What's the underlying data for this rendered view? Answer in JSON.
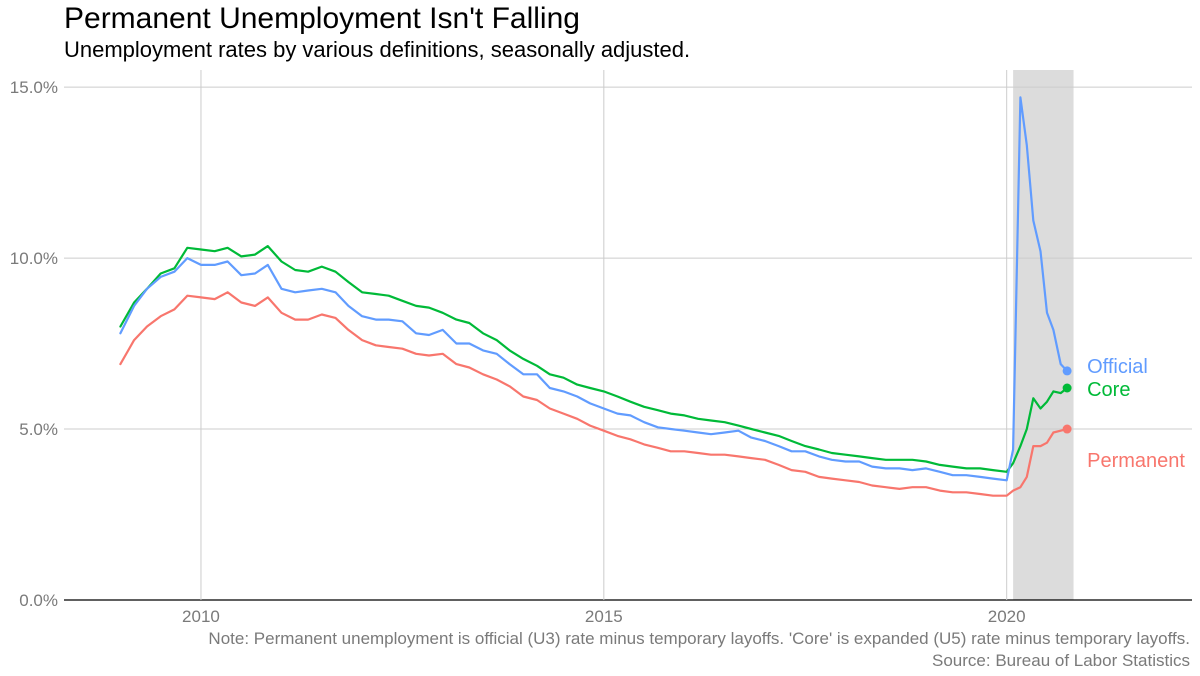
{
  "chart_data": {
    "type": "line",
    "title": "Permanent Unemployment Isn't Falling",
    "subtitle": "Unemployment rates by various definitions, seasonally adjusted.",
    "note": "Note: Permanent unemployment is official (U3) rate minus temporary layoffs. 'Core' is expanded (U5) rate minus temporary layoffs.",
    "source": "Source: Bureau of Labor Statistics",
    "x_label": "",
    "y_label": "",
    "xlim": [
      2008.3,
      2022.3
    ],
    "ylim": [
      0,
      15.5
    ],
    "x_ticks": [
      2010,
      2015,
      2020
    ],
    "x_tick_labels": [
      "2010",
      "2015",
      "2020"
    ],
    "y_ticks": [
      0,
      5,
      10,
      15
    ],
    "y_tick_labels": [
      "0.0%",
      "5.0%",
      "10.0%",
      "15.0%"
    ],
    "grid": true,
    "shaded_region": {
      "x_start": 2020.08,
      "x_end": 2020.83,
      "color": "#dcdcdc"
    },
    "series": [
      {
        "name": "Core",
        "color": "#00ba38",
        "end_label": "Core",
        "points": [
          [
            2009.0,
            8.0
          ],
          [
            2009.17,
            8.7
          ],
          [
            2009.33,
            9.1
          ],
          [
            2009.5,
            9.55
          ],
          [
            2009.67,
            9.7
          ],
          [
            2009.83,
            10.3
          ],
          [
            2010.0,
            10.25
          ],
          [
            2010.17,
            10.2
          ],
          [
            2010.33,
            10.3
          ],
          [
            2010.5,
            10.05
          ],
          [
            2010.67,
            10.1
          ],
          [
            2010.83,
            10.35
          ],
          [
            2011.0,
            9.9
          ],
          [
            2011.17,
            9.65
          ],
          [
            2011.33,
            9.6
          ],
          [
            2011.5,
            9.75
          ],
          [
            2011.67,
            9.6
          ],
          [
            2011.83,
            9.3
          ],
          [
            2012.0,
            9.0
          ],
          [
            2012.17,
            8.95
          ],
          [
            2012.33,
            8.9
          ],
          [
            2012.5,
            8.75
          ],
          [
            2012.67,
            8.6
          ],
          [
            2012.83,
            8.55
          ],
          [
            2013.0,
            8.4
          ],
          [
            2013.17,
            8.2
          ],
          [
            2013.33,
            8.1
          ],
          [
            2013.5,
            7.8
          ],
          [
            2013.67,
            7.6
          ],
          [
            2013.83,
            7.3
          ],
          [
            2014.0,
            7.05
          ],
          [
            2014.17,
            6.85
          ],
          [
            2014.33,
            6.6
          ],
          [
            2014.5,
            6.5
          ],
          [
            2014.67,
            6.3
          ],
          [
            2014.83,
            6.2
          ],
          [
            2015.0,
            6.1
          ],
          [
            2015.17,
            5.95
          ],
          [
            2015.33,
            5.8
          ],
          [
            2015.5,
            5.65
          ],
          [
            2015.67,
            5.55
          ],
          [
            2015.83,
            5.45
          ],
          [
            2016.0,
            5.4
          ],
          [
            2016.17,
            5.3
          ],
          [
            2016.33,
            5.25
          ],
          [
            2016.5,
            5.2
          ],
          [
            2016.67,
            5.1
          ],
          [
            2016.83,
            5.0
          ],
          [
            2017.0,
            4.9
          ],
          [
            2017.17,
            4.8
          ],
          [
            2017.33,
            4.65
          ],
          [
            2017.5,
            4.5
          ],
          [
            2017.67,
            4.4
          ],
          [
            2017.83,
            4.3
          ],
          [
            2018.0,
            4.25
          ],
          [
            2018.17,
            4.2
          ],
          [
            2018.33,
            4.15
          ],
          [
            2018.5,
            4.1
          ],
          [
            2018.67,
            4.1
          ],
          [
            2018.83,
            4.1
          ],
          [
            2019.0,
            4.05
          ],
          [
            2019.17,
            3.95
          ],
          [
            2019.33,
            3.9
          ],
          [
            2019.5,
            3.85
          ],
          [
            2019.67,
            3.85
          ],
          [
            2019.83,
            3.8
          ],
          [
            2020.0,
            3.75
          ],
          [
            2020.08,
            4.0
          ],
          [
            2020.17,
            4.5
          ],
          [
            2020.25,
            5.0
          ],
          [
            2020.33,
            5.9
          ],
          [
            2020.42,
            5.6
          ],
          [
            2020.5,
            5.8
          ],
          [
            2020.58,
            6.1
          ],
          [
            2020.67,
            6.05
          ],
          [
            2020.75,
            6.2
          ]
        ]
      },
      {
        "name": "Official",
        "color": "#619cff",
        "end_label": "Official",
        "points": [
          [
            2009.0,
            7.8
          ],
          [
            2009.17,
            8.6
          ],
          [
            2009.33,
            9.1
          ],
          [
            2009.5,
            9.45
          ],
          [
            2009.67,
            9.6
          ],
          [
            2009.83,
            10.0
          ],
          [
            2010.0,
            9.8
          ],
          [
            2010.17,
            9.8
          ],
          [
            2010.33,
            9.9
          ],
          [
            2010.5,
            9.5
          ],
          [
            2010.67,
            9.55
          ],
          [
            2010.83,
            9.8
          ],
          [
            2011.0,
            9.1
          ],
          [
            2011.17,
            9.0
          ],
          [
            2011.33,
            9.05
          ],
          [
            2011.5,
            9.1
          ],
          [
            2011.67,
            9.0
          ],
          [
            2011.83,
            8.6
          ],
          [
            2012.0,
            8.3
          ],
          [
            2012.17,
            8.2
          ],
          [
            2012.33,
            8.2
          ],
          [
            2012.5,
            8.15
          ],
          [
            2012.67,
            7.8
          ],
          [
            2012.83,
            7.75
          ],
          [
            2013.0,
            7.9
          ],
          [
            2013.17,
            7.5
          ],
          [
            2013.33,
            7.5
          ],
          [
            2013.5,
            7.3
          ],
          [
            2013.67,
            7.2
          ],
          [
            2013.83,
            6.9
          ],
          [
            2014.0,
            6.6
          ],
          [
            2014.17,
            6.6
          ],
          [
            2014.33,
            6.2
          ],
          [
            2014.5,
            6.1
          ],
          [
            2014.67,
            5.95
          ],
          [
            2014.83,
            5.75
          ],
          [
            2015.0,
            5.6
          ],
          [
            2015.17,
            5.45
          ],
          [
            2015.33,
            5.4
          ],
          [
            2015.5,
            5.2
          ],
          [
            2015.67,
            5.05
          ],
          [
            2015.83,
            5.0
          ],
          [
            2016.0,
            4.95
          ],
          [
            2016.17,
            4.9
          ],
          [
            2016.33,
            4.85
          ],
          [
            2016.5,
            4.9
          ],
          [
            2016.67,
            4.95
          ],
          [
            2016.83,
            4.75
          ],
          [
            2017.0,
            4.65
          ],
          [
            2017.17,
            4.5
          ],
          [
            2017.33,
            4.35
          ],
          [
            2017.5,
            4.35
          ],
          [
            2017.67,
            4.2
          ],
          [
            2017.83,
            4.1
          ],
          [
            2018.0,
            4.05
          ],
          [
            2018.17,
            4.05
          ],
          [
            2018.33,
            3.9
          ],
          [
            2018.5,
            3.85
          ],
          [
            2018.67,
            3.85
          ],
          [
            2018.83,
            3.8
          ],
          [
            2019.0,
            3.85
          ],
          [
            2019.17,
            3.75
          ],
          [
            2019.33,
            3.65
          ],
          [
            2019.5,
            3.65
          ],
          [
            2019.67,
            3.6
          ],
          [
            2019.83,
            3.55
          ],
          [
            2020.0,
            3.5
          ],
          [
            2020.08,
            4.4
          ],
          [
            2020.17,
            14.7
          ],
          [
            2020.25,
            13.3
          ],
          [
            2020.33,
            11.1
          ],
          [
            2020.42,
            10.2
          ],
          [
            2020.5,
            8.4
          ],
          [
            2020.58,
            7.9
          ],
          [
            2020.67,
            6.9
          ],
          [
            2020.75,
            6.7
          ]
        ]
      },
      {
        "name": "Permanent",
        "color": "#f8766d",
        "end_label": "Permanent",
        "points": [
          [
            2009.0,
            6.9
          ],
          [
            2009.17,
            7.6
          ],
          [
            2009.33,
            8.0
          ],
          [
            2009.5,
            8.3
          ],
          [
            2009.67,
            8.5
          ],
          [
            2009.83,
            8.9
          ],
          [
            2010.0,
            8.85
          ],
          [
            2010.17,
            8.8
          ],
          [
            2010.33,
            9.0
          ],
          [
            2010.5,
            8.7
          ],
          [
            2010.67,
            8.6
          ],
          [
            2010.83,
            8.85
          ],
          [
            2011.0,
            8.4
          ],
          [
            2011.17,
            8.2
          ],
          [
            2011.33,
            8.2
          ],
          [
            2011.5,
            8.35
          ],
          [
            2011.67,
            8.25
          ],
          [
            2011.83,
            7.9
          ],
          [
            2012.0,
            7.6
          ],
          [
            2012.17,
            7.45
          ],
          [
            2012.33,
            7.4
          ],
          [
            2012.5,
            7.35
          ],
          [
            2012.67,
            7.2
          ],
          [
            2012.83,
            7.15
          ],
          [
            2013.0,
            7.2
          ],
          [
            2013.17,
            6.9
          ],
          [
            2013.33,
            6.8
          ],
          [
            2013.5,
            6.6
          ],
          [
            2013.67,
            6.45
          ],
          [
            2013.83,
            6.25
          ],
          [
            2014.0,
            5.95
          ],
          [
            2014.17,
            5.85
          ],
          [
            2014.33,
            5.6
          ],
          [
            2014.5,
            5.45
          ],
          [
            2014.67,
            5.3
          ],
          [
            2014.83,
            5.1
          ],
          [
            2015.0,
            4.95
          ],
          [
            2015.17,
            4.8
          ],
          [
            2015.33,
            4.7
          ],
          [
            2015.5,
            4.55
          ],
          [
            2015.67,
            4.45
          ],
          [
            2015.83,
            4.35
          ],
          [
            2016.0,
            4.35
          ],
          [
            2016.17,
            4.3
          ],
          [
            2016.33,
            4.25
          ],
          [
            2016.5,
            4.25
          ],
          [
            2016.67,
            4.2
          ],
          [
            2016.83,
            4.15
          ],
          [
            2017.0,
            4.1
          ],
          [
            2017.17,
            3.95
          ],
          [
            2017.33,
            3.8
          ],
          [
            2017.5,
            3.75
          ],
          [
            2017.67,
            3.6
          ],
          [
            2017.83,
            3.55
          ],
          [
            2018.0,
            3.5
          ],
          [
            2018.17,
            3.45
          ],
          [
            2018.33,
            3.35
          ],
          [
            2018.5,
            3.3
          ],
          [
            2018.67,
            3.25
          ],
          [
            2018.83,
            3.3
          ],
          [
            2019.0,
            3.3
          ],
          [
            2019.17,
            3.2
          ],
          [
            2019.33,
            3.15
          ],
          [
            2019.5,
            3.15
          ],
          [
            2019.67,
            3.1
          ],
          [
            2019.83,
            3.05
          ],
          [
            2020.0,
            3.05
          ],
          [
            2020.08,
            3.2
          ],
          [
            2020.17,
            3.3
          ],
          [
            2020.25,
            3.6
          ],
          [
            2020.33,
            4.5
          ],
          [
            2020.42,
            4.5
          ],
          [
            2020.5,
            4.6
          ],
          [
            2020.58,
            4.9
          ],
          [
            2020.67,
            4.95
          ],
          [
            2020.75,
            5.0
          ]
        ]
      }
    ]
  }
}
